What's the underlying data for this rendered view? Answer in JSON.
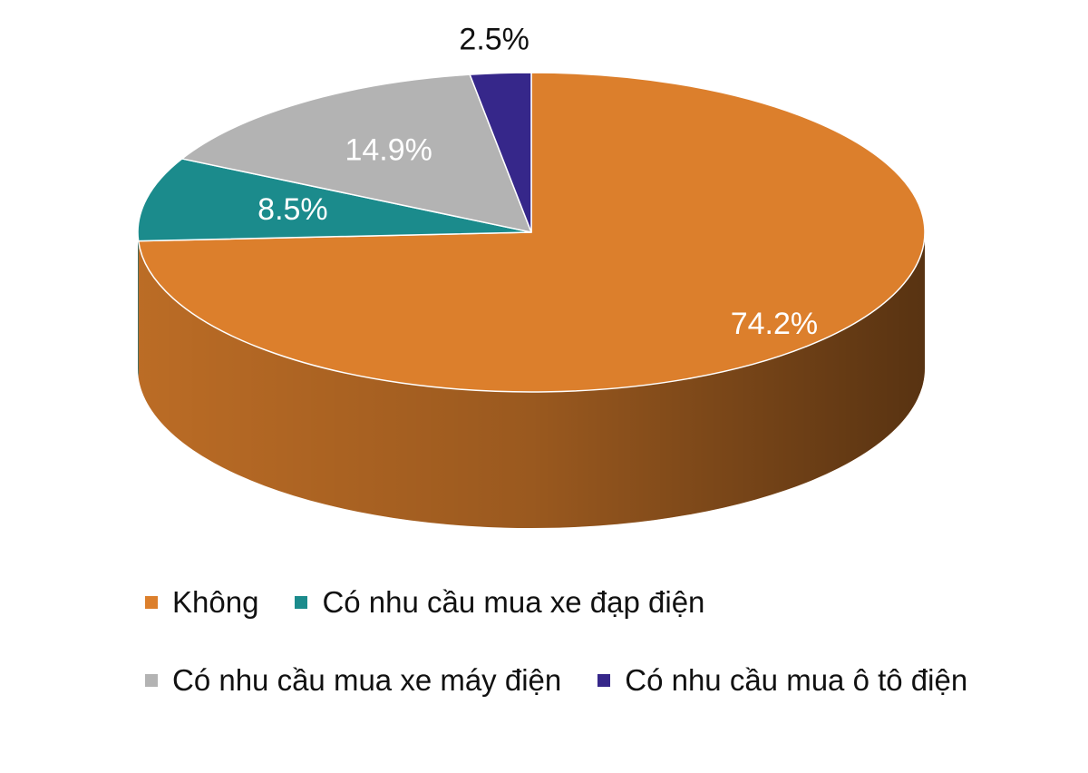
{
  "chart_data": {
    "type": "pie",
    "categories": [
      "Không",
      "Có nhu cầu mua xe đạp điện",
      "Có nhu cầu mua xe máy điện",
      "Có nhu cầu mua ô tô điện"
    ],
    "values": [
      74.2,
      8.5,
      14.9,
      2.5
    ],
    "value_labels": [
      "74.2%",
      "8.5%",
      "14.9%",
      "2.5%"
    ],
    "colors": [
      "#dc7f2c",
      "#1b8b8c",
      "#b3b3b3",
      "#36278a"
    ],
    "legend": "bottom"
  }
}
